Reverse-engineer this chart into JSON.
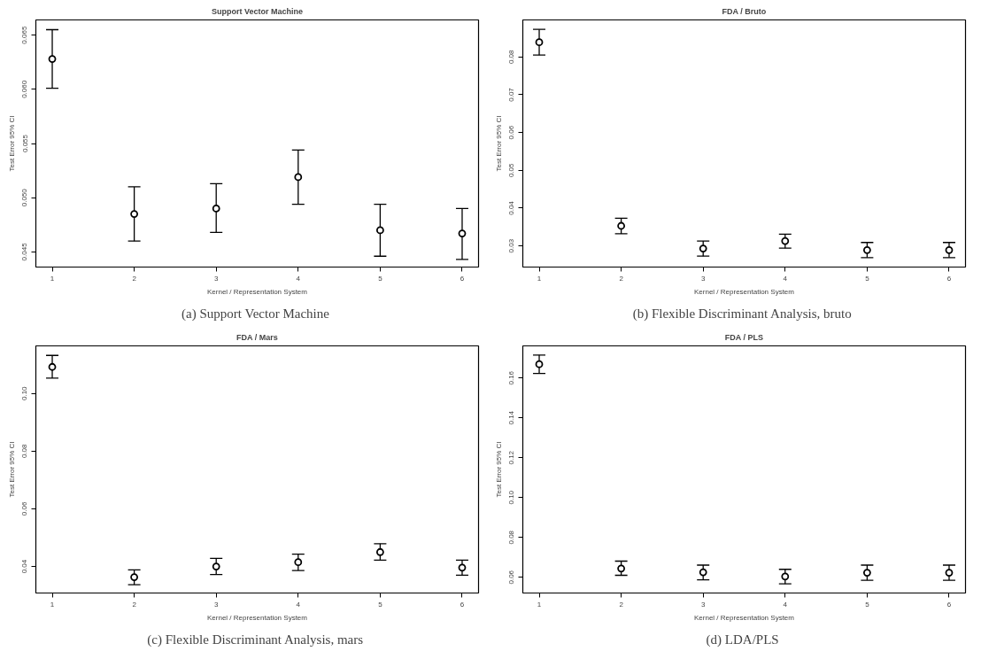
{
  "chart_data": [
    {
      "type": "scatter",
      "title": "Support Vector Machine",
      "xlabel": "Kernel / Representation System",
      "ylabel": "Test Error 95% CI",
      "annotations": [
        "(a)  Support Vector Machine"
      ],
      "x": [
        1,
        2,
        3,
        4,
        5,
        6
      ],
      "values": [
        0.0628,
        0.0485,
        0.049,
        0.0519,
        0.047,
        0.0467
      ],
      "errors": [
        [
          0.0601,
          0.0655
        ],
        [
          0.046,
          0.051
        ],
        [
          0.0468,
          0.0513
        ],
        [
          0.0494,
          0.0544
        ],
        [
          0.0446,
          0.0494
        ],
        [
          0.0443,
          0.049
        ]
      ],
      "xlim": [
        0.8,
        6.2
      ],
      "xticks": [
        1,
        2,
        3,
        4,
        5,
        6
      ],
      "ylim": [
        0.0436,
        0.0664
      ],
      "yticks": [
        0.045,
        {
          "value": 0.05,
          "label": "0.050"
        },
        0.055,
        {
          "value": 0.06,
          "label": "0.060"
        },
        0.065
      ],
      "marker": "circle",
      "grid": false
    },
    {
      "type": "scatter",
      "title": "FDA / Bruto",
      "xlabel": "Kernel / Representation System",
      "ylabel": "Test Error 95% CI",
      "annotations": [
        "(b)  Flexible Discriminant Analysis, bruto"
      ],
      "x": [
        1,
        2,
        3,
        4,
        5,
        6
      ],
      "values": [
        0.0839,
        0.0353,
        0.0293,
        0.0313,
        0.0289,
        0.0289
      ],
      "errors": [
        [
          0.0805,
          0.0873
        ],
        [
          0.0332,
          0.0373
        ],
        [
          0.0273,
          0.0313
        ],
        [
          0.0294,
          0.0331
        ],
        [
          0.0269,
          0.0309
        ],
        [
          0.0269,
          0.0309
        ]
      ],
      "xlim": [
        0.8,
        6.2
      ],
      "xticks": [
        1,
        2,
        3,
        4,
        5,
        6
      ],
      "ylim": [
        0.0244,
        0.0898
      ],
      "yticks": [
        0.03,
        0.04,
        0.05,
        0.06,
        0.07,
        0.08
      ],
      "marker": "circle",
      "grid": false
    },
    {
      "type": "scatter",
      "title": "FDA / Mars",
      "xlabel": "Kernel / Representation System",
      "ylabel": "Test Error 95% CI",
      "annotations": [
        "(c)  Flexible Discriminant Analysis, mars"
      ],
      "x": [
        1,
        2,
        3,
        4,
        5,
        6
      ],
      "values": [
        0.1092,
        0.0363,
        0.04,
        0.0415,
        0.045,
        0.0396
      ],
      "errors": [
        [
          0.1053,
          0.1132
        ],
        [
          0.0337,
          0.0388
        ],
        [
          0.0372,
          0.0428
        ],
        [
          0.0386,
          0.0443
        ],
        [
          0.0422,
          0.0479
        ],
        [
          0.037,
          0.0422
        ]
      ],
      "xlim": [
        0.8,
        6.2
      ],
      "xticks": [
        1,
        2,
        3,
        4,
        5,
        6
      ],
      "ylim": [
        0.0308,
        0.1165
      ],
      "yticks": [
        0.04,
        0.06,
        0.08,
        {
          "value": 0.1,
          "label": "0.10"
        }
      ],
      "marker": "circle",
      "grid": false
    },
    {
      "type": "scatter",
      "title": "FDA / PLS",
      "xlabel": "Kernel / Representation System",
      "ylabel": "Test Error 95% CI",
      "annotations": [
        "(d)  LDA/PLS"
      ],
      "x": [
        1,
        2,
        3,
        4,
        5,
        6
      ],
      "values": [
        0.1669,
        0.0644,
        0.0625,
        0.0604,
        0.0623,
        0.0623
      ],
      "errors": [
        [
          0.1623,
          0.1715
        ],
        [
          0.061,
          0.0681
        ],
        [
          0.0587,
          0.0661
        ],
        [
          0.0567,
          0.064
        ],
        [
          0.0585,
          0.0661
        ],
        [
          0.0585,
          0.0661
        ]
      ],
      "xlim": [
        0.8,
        6.2
      ],
      "xticks": [
        1,
        2,
        3,
        4,
        5,
        6
      ],
      "ylim": [
        0.0521,
        0.1761
      ],
      "yticks": [
        0.06,
        0.08,
        {
          "value": 0.1,
          "label": "0.10"
        },
        0.12,
        0.14,
        0.16
      ],
      "marker": "circle",
      "grid": false
    }
  ]
}
